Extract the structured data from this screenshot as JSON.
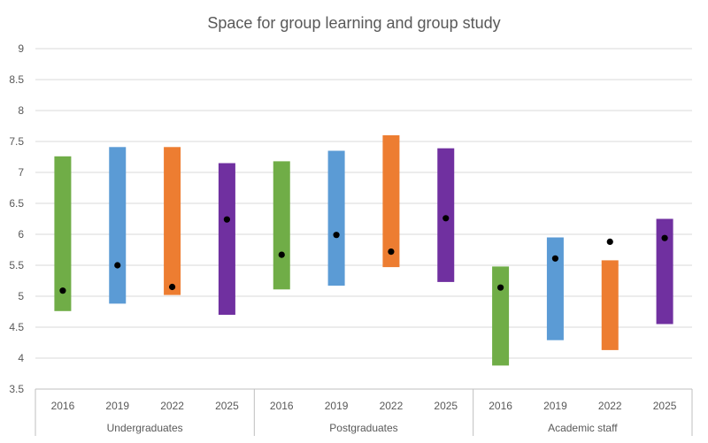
{
  "chart_data": {
    "type": "bar",
    "subtype": "floating-range-with-marker",
    "title": "Space for group learning and group study",
    "ylim": [
      3.5,
      9
    ],
    "y_ticks": [
      "3.5",
      "4",
      "4.5",
      "5",
      "5.5",
      "6",
      "6.5",
      "7",
      "7.5",
      "8",
      "8.5",
      "9"
    ],
    "grid": true,
    "year_colors": {
      "2016": "#70ad47",
      "2019": "#5b9bd5",
      "2022": "#ed7d31",
      "2025": "#7030a0"
    },
    "marker_color": "#000000",
    "groups": [
      {
        "label": "Undergraduates",
        "bars": [
          {
            "year": "2016",
            "low": 4.76,
            "high": 7.26,
            "point": 5.09
          },
          {
            "year": "2019",
            "low": 4.88,
            "high": 7.41,
            "point": 5.5
          },
          {
            "year": "2022",
            "low": 5.02,
            "high": 7.41,
            "point": 5.15
          },
          {
            "year": "2025",
            "low": 4.7,
            "high": 7.15,
            "point": 6.24
          }
        ]
      },
      {
        "label": "Postgraduates",
        "bars": [
          {
            "year": "2016",
            "low": 5.11,
            "high": 7.18,
            "point": 5.67
          },
          {
            "year": "2019",
            "low": 5.17,
            "high": 7.35,
            "point": 5.99
          },
          {
            "year": "2022",
            "low": 5.47,
            "high": 7.6,
            "point": 5.72
          },
          {
            "year": "2025",
            "low": 5.23,
            "high": 7.39,
            "point": 6.26
          }
        ]
      },
      {
        "label": "Academic staff",
        "bars": [
          {
            "year": "2016",
            "low": 3.88,
            "high": 5.48,
            "point": 5.14
          },
          {
            "year": "2019",
            "low": 4.29,
            "high": 5.95,
            "point": 5.61
          },
          {
            "year": "2022",
            "low": 4.13,
            "high": 5.58,
            "point": 5.88
          },
          {
            "year": "2025",
            "low": 4.55,
            "high": 6.25,
            "point": 5.94
          }
        ]
      }
    ]
  }
}
